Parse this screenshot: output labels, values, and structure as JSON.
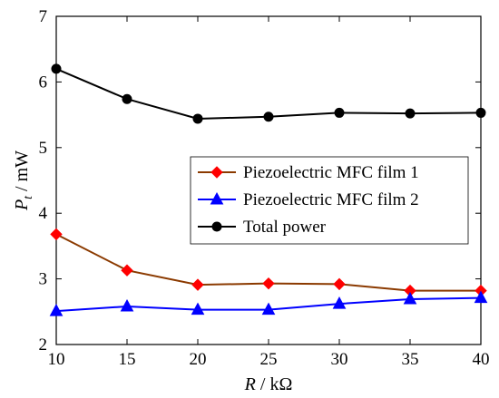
{
  "chart_data": {
    "type": "line",
    "title": "",
    "xlabel": {
      "var": "R",
      "unit": " / kΩ"
    },
    "ylabel": {
      "var": "P",
      "sub": "t",
      "unit": " / mW"
    },
    "x": [
      10,
      15,
      20,
      25,
      30,
      35,
      40
    ],
    "xlim": [
      10,
      40
    ],
    "ylim": [
      2,
      7
    ],
    "xticks": [
      "10",
      "15",
      "20",
      "25",
      "30",
      "35",
      "40"
    ],
    "yticks": [
      "2",
      "3",
      "4",
      "5",
      "6",
      "7"
    ],
    "grid": false,
    "legend_position": "center-right",
    "series": [
      {
        "name": "Piezoelectric MFC film 1",
        "values": [
          3.68,
          3.13,
          2.91,
          2.93,
          2.92,
          2.82,
          2.82
        ],
        "color": "#ff0000",
        "line_color": "#8b3a00",
        "marker": "diamond"
      },
      {
        "name": "Piezoelectric MFC film 2",
        "values": [
          2.51,
          2.58,
          2.53,
          2.53,
          2.62,
          2.69,
          2.71
        ],
        "color": "#0000ff",
        "line_color": "#0000ff",
        "marker": "triangle"
      },
      {
        "name": "Total power",
        "values": [
          6.2,
          5.74,
          5.44,
          5.47,
          5.53,
          5.52,
          5.53
        ],
        "color": "#000000",
        "line_color": "#000000",
        "marker": "circle"
      }
    ]
  }
}
